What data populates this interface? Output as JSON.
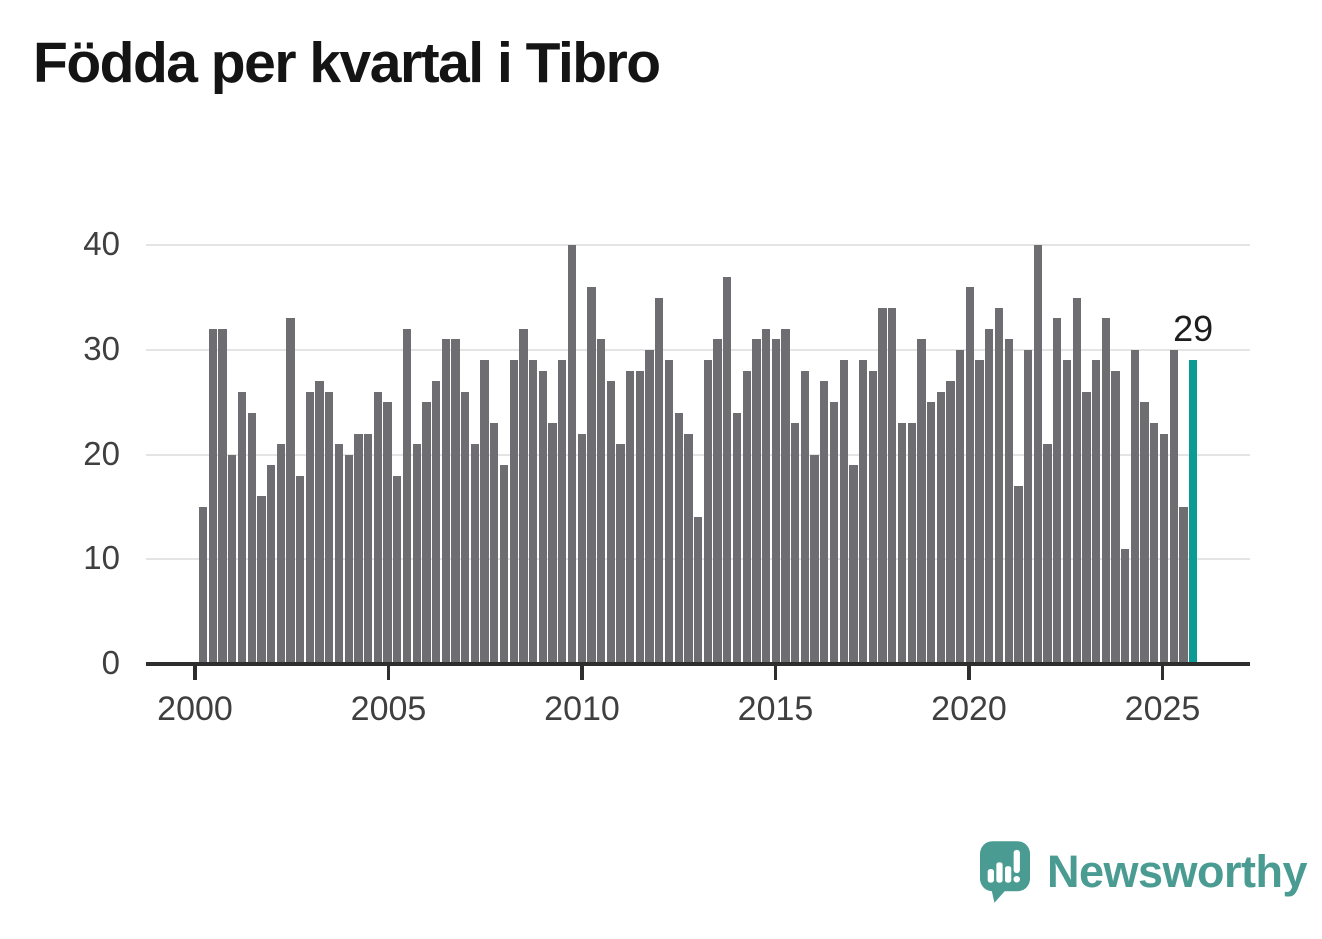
{
  "title": "Födda per kvartal i Tibro",
  "branding": {
    "name": "Newsworthy",
    "icon": "newsworthy-speech-bubble-chart-icon"
  },
  "colors": {
    "bar": "#6e6d72",
    "highlight": "#0b9a94",
    "brand": "#4a9c92",
    "grid": "#e4e4e4",
    "axis": "#2e2e2e",
    "tick_label": "#3f3f3f",
    "title": "#141414",
    "annotation": "#1e1e1e",
    "background": "#ffffff"
  },
  "chart_data": {
    "type": "bar",
    "title": "Födda per kvartal i Tibro",
    "x": [
      "2000Q1",
      "2000Q2",
      "2000Q3",
      "2000Q4",
      "2001Q1",
      "2001Q2",
      "2001Q3",
      "2001Q4",
      "2002Q1",
      "2002Q2",
      "2002Q3",
      "2002Q4",
      "2003Q1",
      "2003Q2",
      "2003Q3",
      "2003Q4",
      "2004Q1",
      "2004Q2",
      "2004Q3",
      "2004Q4",
      "2005Q1",
      "2005Q2",
      "2005Q3",
      "2005Q4",
      "2006Q1",
      "2006Q2",
      "2006Q3",
      "2006Q4",
      "2007Q1",
      "2007Q2",
      "2007Q3",
      "2007Q4",
      "2008Q1",
      "2008Q2",
      "2008Q3",
      "2008Q4",
      "2009Q1",
      "2009Q2",
      "2009Q3",
      "2009Q4",
      "2010Q1",
      "2010Q2",
      "2010Q3",
      "2010Q4",
      "2011Q1",
      "2011Q2",
      "2011Q3",
      "2011Q4",
      "2012Q1",
      "2012Q2",
      "2012Q3",
      "2012Q4",
      "2013Q1",
      "2013Q2",
      "2013Q3",
      "2013Q4",
      "2014Q1",
      "2014Q2",
      "2014Q3",
      "2014Q4",
      "2015Q1",
      "2015Q2",
      "2015Q3",
      "2015Q4",
      "2016Q1",
      "2016Q2",
      "2016Q3",
      "2016Q4",
      "2017Q1",
      "2017Q2",
      "2017Q3",
      "2017Q4",
      "2018Q1",
      "2018Q2",
      "2018Q3",
      "2018Q4",
      "2019Q1",
      "2019Q2",
      "2019Q3",
      "2019Q4",
      "2020Q1",
      "2020Q2",
      "2020Q3",
      "2020Q4",
      "2021Q1",
      "2021Q2",
      "2021Q3",
      "2021Q4",
      "2022Q1",
      "2022Q2",
      "2022Q3",
      "2022Q4",
      "2023Q1",
      "2023Q2",
      "2023Q3",
      "2023Q4",
      "2024Q1",
      "2024Q2",
      "2024Q3",
      "2024Q4",
      "2025Q1",
      "2025Q2",
      "2025Q3"
    ],
    "values": [
      15,
      32,
      32,
      20,
      26,
      24,
      16,
      19,
      21,
      33,
      18,
      26,
      27,
      26,
      21,
      20,
      22,
      22,
      26,
      25,
      18,
      32,
      21,
      25,
      27,
      31,
      31,
      26,
      21,
      29,
      23,
      19,
      29,
      32,
      29,
      28,
      23,
      29,
      40,
      22,
      36,
      31,
      27,
      21,
      28,
      28,
      30,
      35,
      29,
      24,
      22,
      14,
      29,
      31,
      37,
      24,
      28,
      31,
      32,
      31,
      32,
      23,
      28,
      20,
      27,
      25,
      29,
      19,
      29,
      28,
      34,
      34,
      23,
      23,
      31,
      25,
      26,
      27,
      30,
      36,
      29,
      32,
      34,
      31,
      17,
      30,
      40,
      21,
      33,
      29,
      35,
      26,
      29,
      33,
      28,
      11,
      30,
      25,
      23,
      22,
      30,
      15,
      29
    ],
    "highlight": {
      "index": 102,
      "x": "2025Q3",
      "value": 29,
      "label": "29"
    },
    "yticks": [
      0,
      10,
      20,
      30,
      40
    ],
    "xticks": [
      "2000",
      "2005",
      "2010",
      "2015",
      "2020",
      "2025"
    ],
    "ylim": [
      0,
      40
    ],
    "xlabel": "",
    "ylabel": "",
    "grid": true,
    "legend_position": "none"
  }
}
